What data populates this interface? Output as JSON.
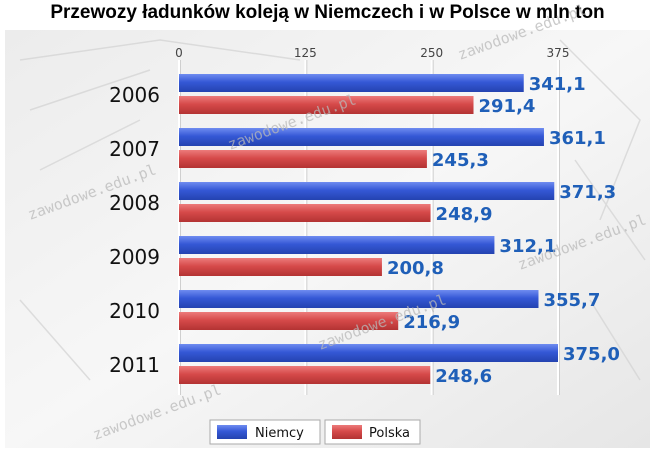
{
  "title": "Przewozy ładunków koleją w Niemczech i w Polsce w mln ton",
  "watermark": "zawodowe.edu.pl",
  "colors": {
    "niemcy": "#3558d6",
    "polska": "#d64a4a",
    "niemcy_label": "#1f5fb8"
  },
  "chart_data": {
    "type": "bar",
    "orientation": "horizontal",
    "title": "Przewozy ładunków koleją w Niemczech i w Polsce w mln ton",
    "categories": [
      "2006",
      "2007",
      "2008",
      "2009",
      "2010",
      "2011"
    ],
    "series": [
      {
        "name": "Niemcy",
        "values": [
          341.1,
          361.1,
          371.3,
          312.1,
          355.7,
          375.0
        ],
        "labels": [
          "341,1",
          "361,1",
          "371,3",
          "312,1",
          "355,7",
          "375,0"
        ]
      },
      {
        "name": "Polska",
        "values": [
          291.4,
          245.3,
          248.9,
          200.8,
          216.9,
          248.6
        ],
        "labels": [
          "291,4",
          "245,3",
          "248,9",
          "200,8",
          "216,9",
          "248,6"
        ]
      }
    ],
    "xticks": [
      "0",
      "125",
      "250",
      "375"
    ],
    "xlim": [
      0,
      375
    ],
    "grid": true,
    "legend": "bottom-center"
  }
}
